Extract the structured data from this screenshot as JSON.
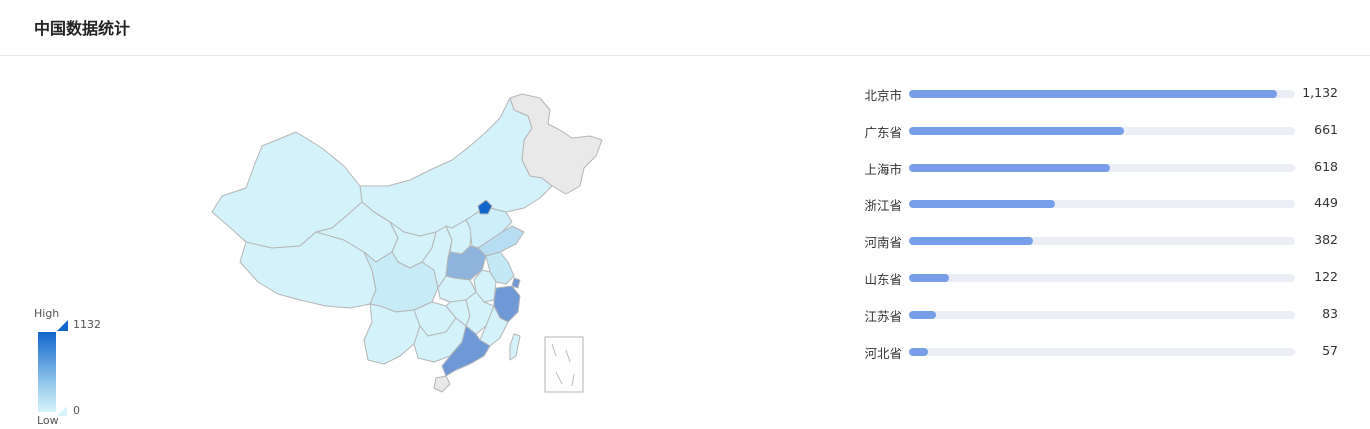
{
  "page": {
    "title": "中国数据统计"
  },
  "legend": {
    "high_label": "High",
    "low_label": "Low",
    "max_value": "1132",
    "min_value": "0"
  },
  "colors": {
    "accent": "#1166cc",
    "bar_fill": "#779ee8",
    "bar_track": "#ebeef5",
    "map_low": "#d3f2fa",
    "map_no_data": "#e9e9e9",
    "map_border": "#b5b5b5"
  },
  "map": {
    "regions": [
      {
        "name": "北京",
        "value": 1132
      },
      {
        "name": "广东",
        "value": 661
      },
      {
        "name": "上海",
        "value": 618
      },
      {
        "name": "浙江",
        "value": 449
      },
      {
        "name": "河南",
        "value": 382
      },
      {
        "name": "山东",
        "value": 122
      },
      {
        "name": "江苏",
        "value": 83
      },
      {
        "name": "河北",
        "value": 57
      }
    ]
  },
  "ranking": [
    {
      "name": "北京市",
      "value": 1132,
      "display": "1,132"
    },
    {
      "name": "广东省",
      "value": 661,
      "display": "661"
    },
    {
      "name": "上海市",
      "value": 618,
      "display": "618"
    },
    {
      "name": "浙江省",
      "value": 449,
      "display": "449"
    },
    {
      "name": "河南省",
      "value": 382,
      "display": "382"
    },
    {
      "name": "山东省",
      "value": 122,
      "display": "122"
    },
    {
      "name": "江苏省",
      "value": 83,
      "display": "83"
    },
    {
      "name": "河北省",
      "value": 57,
      "display": "57"
    }
  ]
}
